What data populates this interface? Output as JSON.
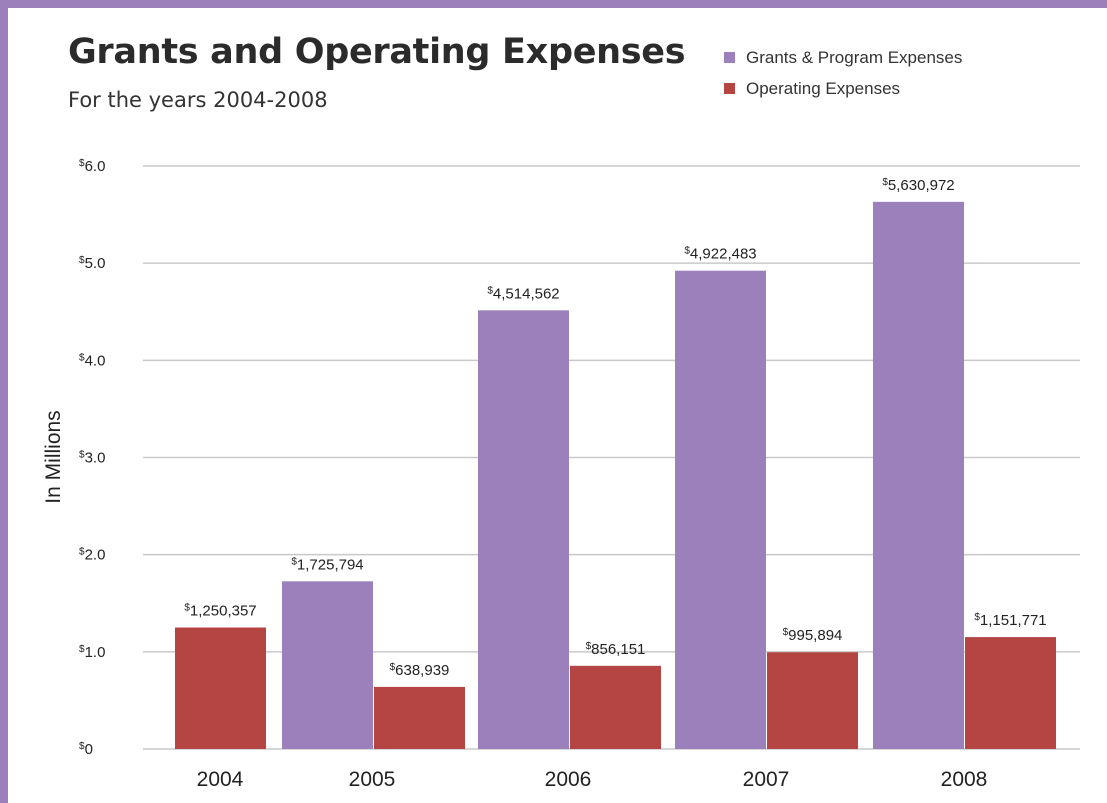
{
  "chart_data": {
    "type": "bar",
    "title": "Grants and Operating Expenses",
    "subtitle": "For the years 2004-2008",
    "ylabel": "In Millions",
    "xlabel": "",
    "ylim": [
      0,
      6.0
    ],
    "y_ticks": [
      {
        "value": 0,
        "label": "0"
      },
      {
        "value": 1,
        "label": "1.0"
      },
      {
        "value": 2,
        "label": "2.0"
      },
      {
        "value": 3,
        "label": "3.0"
      },
      {
        "value": 4,
        "label": "4.0"
      },
      {
        "value": 5,
        "label": "5.0"
      },
      {
        "value": 6,
        "label": "6.0"
      }
    ],
    "currency_symbol": "$",
    "grid": true,
    "legend_position": "top-right",
    "categories": [
      "2004",
      "2005",
      "2006",
      "2007",
      "2008"
    ],
    "series": [
      {
        "name": "Grants & Program Expenses",
        "color": "#9c80bb",
        "values": [
          null,
          1.725794,
          4.514562,
          4.922483,
          5.630972
        ],
        "labels": [
          null,
          "1,725,794",
          "4,514,562",
          "4,922,483",
          "5,630,972"
        ]
      },
      {
        "name": "Operating Expenses",
        "color": "#b44542",
        "values": [
          1.250357,
          0.638939,
          0.856151,
          0.995894,
          1.151771
        ],
        "labels": [
          "1,250,357",
          "638,939",
          "856,151",
          "995,894",
          "1,151,771"
        ]
      }
    ]
  }
}
